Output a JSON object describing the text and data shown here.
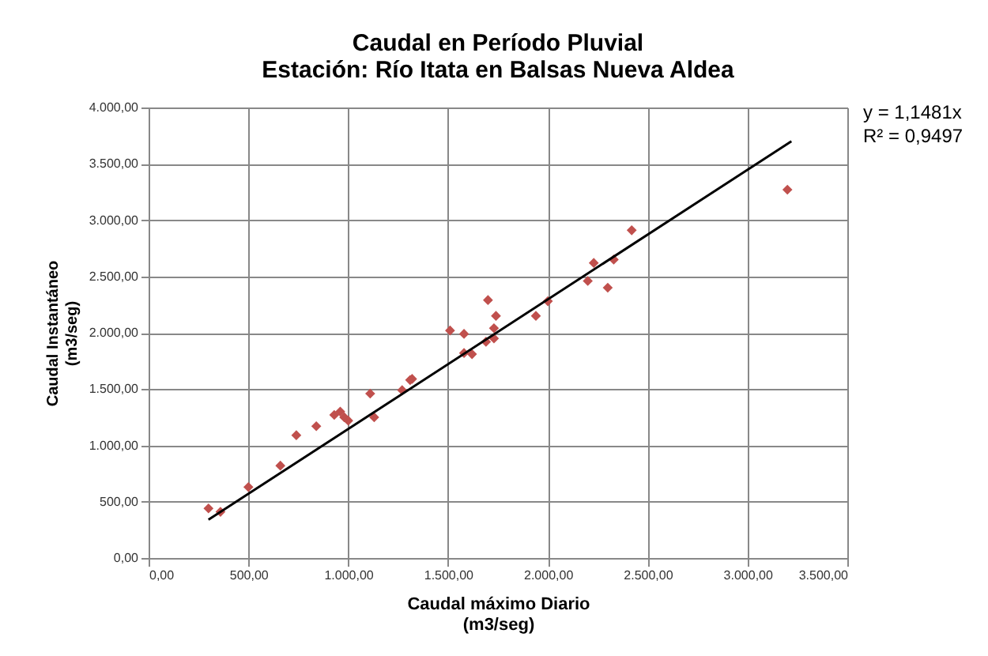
{
  "chart_data": {
    "type": "scatter",
    "title": "Caudal en Período Pluvial",
    "subtitle": "Estación: Río Itata en Balsas Nueva Aldea",
    "xlabel": "Caudal máximo Diario\n(m3/seg)",
    "ylabel": "Caudal Instantáneo\n(m3/seg)",
    "xlim": [
      0,
      3500
    ],
    "xticks": [
      {
        "value": 0,
        "label": "0,00"
      },
      {
        "value": 500,
        "label": "500,00"
      },
      {
        "value": 1000,
        "label": "1.000,00"
      },
      {
        "value": 1500,
        "label": "1.500,00"
      },
      {
        "value": 2000,
        "label": "2.000,00"
      },
      {
        "value": 2500,
        "label": "2.500,00"
      },
      {
        "value": 3000,
        "label": "3.000,00"
      },
      {
        "value": 3500,
        "label": "3.500,00"
      }
    ],
    "ylim": [
      0,
      4000
    ],
    "yticks": [
      {
        "value": 0,
        "label": "0,00"
      },
      {
        "value": 500,
        "label": "500,00"
      },
      {
        "value": 1000,
        "label": "1.000,00"
      },
      {
        "value": 1500,
        "label": "1.500,00"
      },
      {
        "value": 2000,
        "label": "2.000,00"
      },
      {
        "value": 2500,
        "label": "2.500,00"
      },
      {
        "value": 3000,
        "label": "3.000,00"
      },
      {
        "value": 3500,
        "label": "3.500,00"
      },
      {
        "value": 4000,
        "label": "4.000,00"
      }
    ],
    "grid": true,
    "series": [
      {
        "marker": "diamond",
        "color": "#c0504d",
        "x": [
          300,
          360,
          500,
          660,
          740,
          840,
          930,
          960,
          980,
          1000,
          1110,
          1130,
          1270,
          1310,
          1320,
          1510,
          1580,
          1580,
          1620,
          1690,
          1700,
          1730,
          1740,
          1730,
          1940,
          2000,
          2200,
          2230,
          2300,
          2330,
          2420,
          3200
        ],
        "values": [
          440,
          410,
          630,
          820,
          1090,
          1170,
          1270,
          1300,
          1250,
          1220,
          1460,
          1250,
          1490,
          1580,
          1590,
          2020,
          1990,
          1820,
          1810,
          1920,
          2290,
          1950,
          2150,
          2040,
          2150,
          2280,
          2460,
          2620,
          2400,
          2650,
          2910,
          3270
        ]
      },
      {
        "type": "line",
        "color": "#000000",
        "x": [
          300,
          3220
        ],
        "values": [
          340,
          3700
        ]
      }
    ],
    "annotations": [
      "y = 1,1481x",
      "R² = 0,9497"
    ]
  }
}
